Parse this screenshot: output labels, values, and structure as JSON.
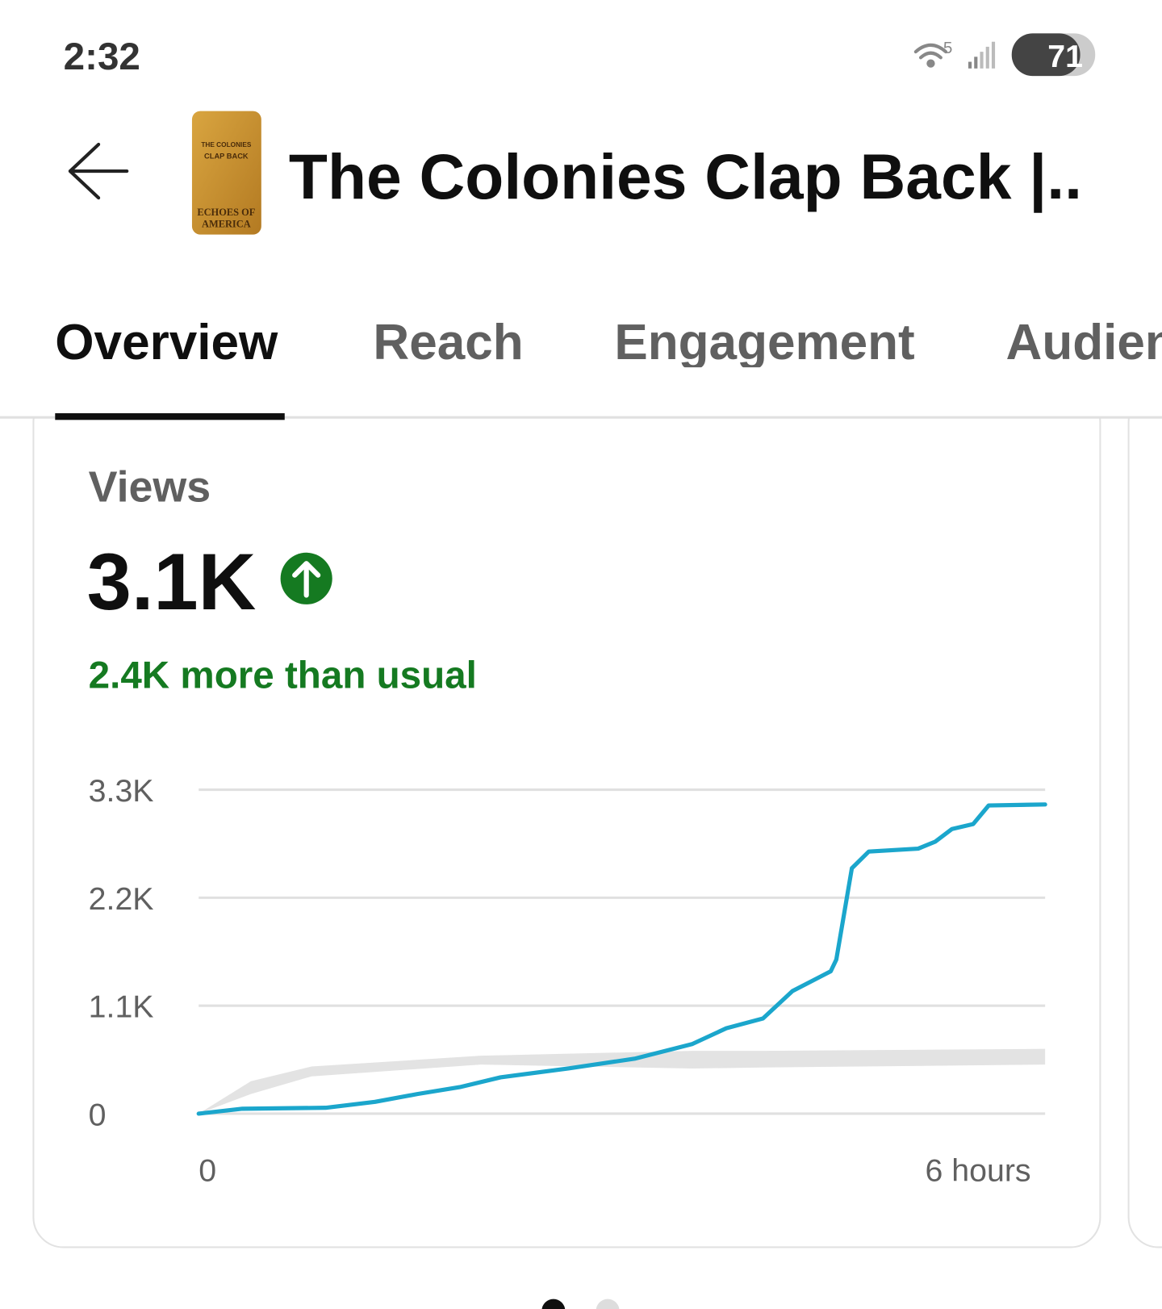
{
  "status_bar": {
    "time": "2:32",
    "network": "5",
    "battery": "71"
  },
  "header": {
    "title": "The Colonies Clap Back |..",
    "thumbnail": {
      "lines": [
        "THE COLONIES",
        "CLAP BACK",
        "ECHOES OF",
        "AMERICA"
      ]
    }
  },
  "tabs": [
    "Overview",
    "Reach",
    "Engagement",
    "Audience"
  ],
  "card": {
    "label": "Views",
    "value": "3.1K",
    "comparison": "2.4K more than usual"
  },
  "chart_data": {
    "type": "line",
    "x": [
      0,
      0.31,
      0.9,
      1.25,
      1.55,
      1.85,
      2.14,
      2.62,
      3.09,
      3.5,
      3.74,
      4.0,
      4.21,
      4.48,
      4.52,
      4.63,
      4.75,
      5.1,
      5.22,
      5.34,
      5.49,
      5.6,
      6
    ],
    "series": [
      {
        "color": "#1ba6cc",
        "values": [
          0,
          50,
          60,
          120,
          200,
          270,
          370,
          460,
          560,
          710,
          870,
          970,
          1250,
          1450,
          1570,
          2500,
          2670,
          2700,
          2770,
          2900,
          2950,
          3140,
          3150
        ]
      }
    ],
    "typical_range": {
      "color": "#e3e3e3",
      "x": [
        0,
        0.37,
        0.8,
        2,
        3.5,
        4,
        6
      ],
      "low": [
        0,
        200,
        380,
        500,
        460,
        470,
        500
      ],
      "high": [
        0,
        330,
        480,
        590,
        640,
        640,
        660
      ]
    },
    "xlim": [
      0,
      6
    ],
    "xticks": [
      0,
      {
        "value": 6,
        "label": "6 hours"
      }
    ],
    "ylim": [
      0,
      3300
    ],
    "yticks": [
      0,
      {
        "value": 1100,
        "label": "1.1K"
      },
      {
        "value": 2200,
        "label": "2.2K"
      },
      {
        "value": 3300,
        "label": "3.3K"
      }
    ],
    "grid": true
  }
}
